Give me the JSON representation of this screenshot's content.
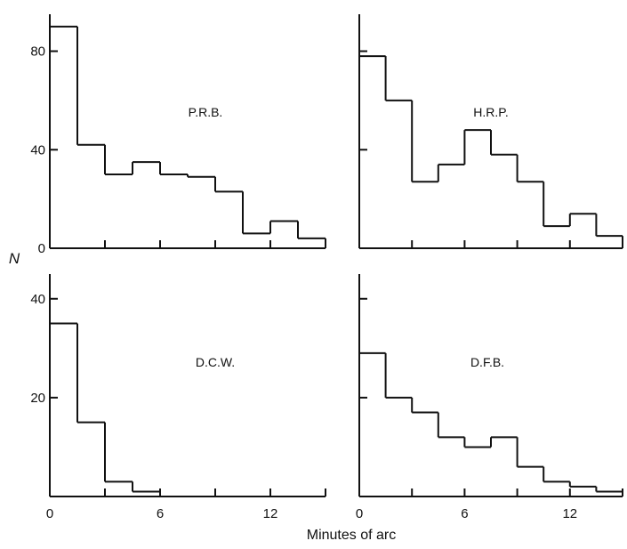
{
  "chart_data": {
    "type": "histogram",
    "xlabel": "Minutes of arc",
    "ylabel": "N",
    "bin_edges": [
      0,
      1.5,
      3,
      4.5,
      6,
      7.5,
      9,
      10.5,
      12,
      13.5,
      15
    ],
    "x_ticks": [
      0,
      6,
      12
    ],
    "x_tick_minor": [
      3,
      9,
      15
    ],
    "panels": [
      {
        "label": "P.R.B.",
        "ylim": [
          0,
          95
        ],
        "y_ticks": [
          0,
          40,
          80
        ],
        "y_tick_labels": [
          "0",
          "40",
          "80"
        ],
        "show_x_tick_labels": false,
        "values": [
          90,
          42,
          30,
          35,
          30,
          29,
          23,
          6,
          11,
          4
        ]
      },
      {
        "label": "H.R.P.",
        "ylim": [
          0,
          95
        ],
        "y_ticks": [
          40,
          80
        ],
        "y_tick_labels": [],
        "show_x_tick_labels": false,
        "values": [
          78,
          60,
          27,
          34,
          48,
          38,
          27,
          9,
          14,
          5
        ]
      },
      {
        "label": "D.C.W.",
        "ylim": [
          0,
          45
        ],
        "y_ticks": [
          20,
          40
        ],
        "y_tick_labels": [
          "20",
          "40"
        ],
        "show_x_tick_labels": true,
        "x_tick_labels": [
          "0",
          "6",
          "12"
        ],
        "values": [
          35,
          15,
          3,
          1,
          0,
          0,
          0,
          0,
          0,
          0
        ]
      },
      {
        "label": "D.F.B.",
        "ylim": [
          0,
          45
        ],
        "y_ticks": [
          20,
          40
        ],
        "y_tick_labels": [],
        "show_x_tick_labels": true,
        "x_tick_labels": [
          "0",
          "6",
          "12"
        ],
        "values": [
          29,
          20,
          17,
          12,
          10,
          12,
          6,
          3,
          2,
          1
        ]
      }
    ]
  }
}
